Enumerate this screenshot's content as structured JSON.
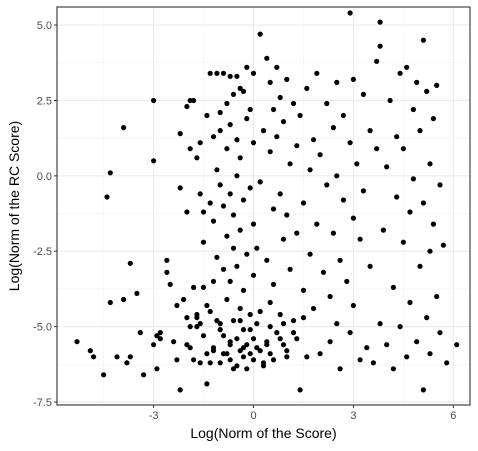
{
  "chart_data": {
    "type": "scatter",
    "xlabel": "Log(Norm of the Score)",
    "ylabel": "Log(Norm of the RC Score)",
    "xlim": [
      -5.9,
      6.5
    ],
    "ylim": [
      -7.6,
      5.6
    ],
    "x_ticks": [
      -3,
      0,
      3,
      6
    ],
    "x_tick_labels": [
      "-3",
      "0",
      "3",
      "6"
    ],
    "y_ticks": [
      -7.5,
      -5.0,
      -2.5,
      0.0,
      2.5,
      5.0
    ],
    "y_tick_labels": [
      "-7.5",
      "-5.0",
      "-2.5",
      "0.0",
      "2.5",
      "5.0"
    ],
    "grid": true,
    "theme": "bw",
    "point_color": "#000000",
    "points": [
      [
        -5.3,
        -5.5
      ],
      [
        -4.9,
        -5.8
      ],
      [
        -4.8,
        -6.0
      ],
      [
        -4.5,
        -6.6
      ],
      [
        -4.4,
        -0.7
      ],
      [
        -4.3,
        0.1
      ],
      [
        -4.3,
        -4.2
      ],
      [
        -4.1,
        -6.0
      ],
      [
        -3.9,
        1.6
      ],
      [
        -3.9,
        -4.1
      ],
      [
        -3.8,
        -6.2
      ],
      [
        -3.7,
        -2.9
      ],
      [
        -3.7,
        -6.0
      ],
      [
        -3.5,
        -3.9
      ],
      [
        -3.4,
        -5.2
      ],
      [
        -3.3,
        -6.6
      ],
      [
        -3.0,
        2.5
      ],
      [
        -3.0,
        0.5
      ],
      [
        -3.0,
        -5.6
      ],
      [
        -2.9,
        -5.3
      ],
      [
        -2.9,
        -6.4
      ],
      [
        -2.8,
        -5.2
      ],
      [
        -2.8,
        -5.4
      ],
      [
        -2.6,
        -2.8
      ],
      [
        -2.6,
        -3.2
      ],
      [
        -2.5,
        -3.6
      ],
      [
        -2.4,
        -5.5
      ],
      [
        -2.3,
        -4.3
      ],
      [
        -2.3,
        -6.1
      ],
      [
        -2.2,
        -7.1
      ],
      [
        -2.2,
        1.4
      ],
      [
        -2.2,
        -0.4
      ],
      [
        -2.1,
        -4.1
      ],
      [
        -2.0,
        2.3
      ],
      [
        -2.0,
        -1.2
      ],
      [
        -2.0,
        -4.7
      ],
      [
        -2.0,
        -5.6
      ],
      [
        -1.9,
        2.5
      ],
      [
        -1.9,
        0.9
      ],
      [
        -1.9,
        -5.0
      ],
      [
        -1.9,
        -5.7
      ],
      [
        -1.8,
        2.5
      ],
      [
        -1.8,
        -3.7
      ],
      [
        -1.8,
        -6.1
      ],
      [
        -1.7,
        0.6
      ],
      [
        -1.7,
        -4.7
      ],
      [
        -1.7,
        -5.0
      ],
      [
        -1.6,
        1.1
      ],
      [
        -1.6,
        -0.6
      ],
      [
        -1.6,
        -4.9
      ],
      [
        -1.6,
        -6.2
      ],
      [
        -1.5,
        -1.2
      ],
      [
        -1.5,
        -2.2
      ],
      [
        -1.5,
        -3.7
      ],
      [
        -1.4,
        2.0
      ],
      [
        -1.4,
        -4.3
      ],
      [
        -1.4,
        -5.9
      ],
      [
        -1.4,
        -6.9
      ],
      [
        -1.3,
        3.4
      ],
      [
        -1.3,
        -0.9
      ],
      [
        -1.3,
        -4.5
      ],
      [
        -1.3,
        -6.2
      ],
      [
        -1.2,
        1.3
      ],
      [
        -1.2,
        -1.5
      ],
      [
        -1.2,
        -3.5
      ],
      [
        -1.2,
        -5.7
      ],
      [
        -1.1,
        3.4
      ],
      [
        -1.1,
        0.2
      ],
      [
        -1.1,
        -2.7
      ],
      [
        -1.1,
        -4.8
      ],
      [
        -1.0,
        2.1
      ],
      [
        -1.0,
        1.5
      ],
      [
        -1.0,
        -0.3
      ],
      [
        -1.0,
        -5.1
      ],
      [
        -1.0,
        -6.2
      ],
      [
        -0.9,
        3.4
      ],
      [
        -0.9,
        -1.0
      ],
      [
        -0.9,
        -3.1
      ],
      [
        -0.9,
        -5.3
      ],
      [
        -0.8,
        2.4
      ],
      [
        -0.8,
        0.9
      ],
      [
        -0.8,
        -2.0
      ],
      [
        -0.8,
        -4.1
      ],
      [
        -0.8,
        -5.9
      ],
      [
        -0.7,
        3.3
      ],
      [
        -0.7,
        1.7
      ],
      [
        -0.7,
        -0.6
      ],
      [
        -0.7,
        -3.5
      ],
      [
        -0.7,
        -5.6
      ],
      [
        -0.7,
        -6.1
      ],
      [
        -0.6,
        2.7
      ],
      [
        -0.6,
        -1.3
      ],
      [
        -0.6,
        -2.4
      ],
      [
        -0.6,
        -4.8
      ],
      [
        -0.6,
        -6.4
      ],
      [
        -0.5,
        3.3
      ],
      [
        -0.5,
        1.2
      ],
      [
        -0.5,
        0.0
      ],
      [
        -0.5,
        -3.0
      ],
      [
        -0.5,
        -5.4
      ],
      [
        -0.4,
        2.9
      ],
      [
        -0.4,
        0.6
      ],
      [
        -0.4,
        -1.8
      ],
      [
        -0.4,
        -4.4
      ],
      [
        -0.4,
        -5.8
      ],
      [
        -0.3,
        2.8
      ],
      [
        -0.3,
        -0.8
      ],
      [
        -0.3,
        -3.8
      ],
      [
        -0.3,
        -5.1
      ],
      [
        -0.3,
        -6.0
      ],
      [
        -0.2,
        3.6
      ],
      [
        -0.2,
        1.9
      ],
      [
        -0.2,
        -2.6
      ],
      [
        -0.2,
        -5.6
      ],
      [
        -0.1,
        2.2
      ],
      [
        -0.1,
        -0.4
      ],
      [
        -0.1,
        -4.6
      ],
      [
        -0.1,
        -5.9
      ],
      [
        0.0,
        3.4
      ],
      [
        0.0,
        1.1
      ],
      [
        0.0,
        -1.6
      ],
      [
        0.0,
        -3.3
      ],
      [
        0.0,
        -5.4
      ],
      [
        0.0,
        -6.1
      ],
      [
        0.1,
        -2.4
      ],
      [
        0.1,
        -4.9
      ],
      [
        0.1,
        -5.7
      ],
      [
        0.2,
        4.7
      ],
      [
        0.2,
        -0.2
      ],
      [
        0.2,
        -5.8
      ],
      [
        0.3,
        1.5
      ],
      [
        0.3,
        -6.3
      ],
      [
        0.4,
        3.9
      ],
      [
        0.4,
        -2.8
      ],
      [
        0.4,
        -5.5
      ],
      [
        0.5,
        3.1
      ],
      [
        0.5,
        0.8
      ],
      [
        0.5,
        -4.2
      ],
      [
        0.5,
        -5.9
      ],
      [
        0.6,
        2.2
      ],
      [
        0.6,
        -1.1
      ],
      [
        0.6,
        -3.6
      ],
      [
        0.7,
        3.6
      ],
      [
        0.7,
        1.3
      ],
      [
        0.7,
        -5.2
      ],
      [
        0.8,
        2.6
      ],
      [
        0.8,
        -0.6
      ],
      [
        0.8,
        -4.6
      ],
      [
        0.9,
        1.8
      ],
      [
        0.9,
        -2.1
      ],
      [
        0.9,
        -5.6
      ],
      [
        1.0,
        3.2
      ],
      [
        1.0,
        -1.3
      ],
      [
        1.0,
        -6.0
      ],
      [
        1.1,
        0.4
      ],
      [
        1.1,
        -3.1
      ],
      [
        1.2,
        2.4
      ],
      [
        1.2,
        -4.8
      ],
      [
        1.3,
        1.0
      ],
      [
        1.3,
        -1.9
      ],
      [
        1.3,
        -5.4
      ],
      [
        1.4,
        -7.1
      ],
      [
        1.4,
        2.0
      ],
      [
        1.5,
        -0.9
      ],
      [
        1.5,
        -3.8
      ],
      [
        1.6,
        2.9
      ],
      [
        1.6,
        -6.0
      ],
      [
        1.7,
        0.2
      ],
      [
        1.7,
        -2.6
      ],
      [
        1.8,
        1.2
      ],
      [
        1.8,
        -4.4
      ],
      [
        1.9,
        3.4
      ],
      [
        1.9,
        -1.6
      ],
      [
        2.0,
        -5.9
      ],
      [
        2.0,
        0.7
      ],
      [
        2.1,
        -3.2
      ],
      [
        2.2,
        2.4
      ],
      [
        2.2,
        -0.3
      ],
      [
        2.3,
        -4.0
      ],
      [
        2.3,
        -5.5
      ],
      [
        2.4,
        1.6
      ],
      [
        2.4,
        -1.9
      ],
      [
        2.5,
        3.1
      ],
      [
        2.5,
        0.0
      ],
      [
        2.5,
        -4.9
      ],
      [
        2.6,
        -2.8
      ],
      [
        2.6,
        -6.4
      ],
      [
        2.7,
        2.0
      ],
      [
        2.7,
        -0.8
      ],
      [
        2.8,
        -3.5
      ],
      [
        2.9,
        5.4
      ],
      [
        2.9,
        1.1
      ],
      [
        2.9,
        -5.2
      ],
      [
        3.0,
        -1.4
      ],
      [
        3.0,
        3.2
      ],
      [
        3.0,
        -4.3
      ],
      [
        3.1,
        0.4
      ],
      [
        3.2,
        -2.1
      ],
      [
        3.2,
        -6.1
      ],
      [
        3.3,
        2.7
      ],
      [
        3.3,
        -0.5
      ],
      [
        3.4,
        -5.7
      ],
      [
        3.5,
        1.5
      ],
      [
        3.5,
        -3.0
      ],
      [
        3.6,
        -6.2
      ],
      [
        3.7,
        3.8
      ],
      [
        3.7,
        0.9
      ],
      [
        3.8,
        5.1
      ],
      [
        3.8,
        4.3
      ],
      [
        3.8,
        -4.9
      ],
      [
        3.9,
        -1.8
      ],
      [
        4.0,
        -5.6
      ],
      [
        4.0,
        0.3
      ],
      [
        4.1,
        2.5
      ],
      [
        4.2,
        -3.7
      ],
      [
        4.2,
        -6.4
      ],
      [
        4.3,
        1.3
      ],
      [
        4.3,
        -0.7
      ],
      [
        4.4,
        3.4
      ],
      [
        4.4,
        -5.0
      ],
      [
        4.5,
        -2.2
      ],
      [
        4.5,
        0.9
      ],
      [
        4.6,
        3.6
      ],
      [
        4.6,
        -6.0
      ],
      [
        4.7,
        -1.2
      ],
      [
        4.7,
        -4.2
      ],
      [
        4.8,
        2.2
      ],
      [
        4.8,
        -0.1
      ],
      [
        4.9,
        3.1
      ],
      [
        4.9,
        -5.5
      ],
      [
        5.0,
        1.5
      ],
      [
        5.0,
        -3.0
      ],
      [
        5.1,
        -7.1
      ],
      [
        5.1,
        4.5
      ],
      [
        5.1,
        -0.9
      ],
      [
        5.2,
        2.8
      ],
      [
        5.2,
        -4.7
      ],
      [
        5.3,
        0.4
      ],
      [
        5.3,
        -2.5
      ],
      [
        5.3,
        -5.9
      ],
      [
        5.4,
        1.9
      ],
      [
        5.4,
        -1.6
      ],
      [
        5.5,
        3.0
      ],
      [
        5.5,
        -4.0
      ],
      [
        5.6,
        -0.3
      ],
      [
        5.6,
        -5.2
      ],
      [
        5.7,
        -2.3
      ],
      [
        6.1,
        -5.6
      ],
      [
        5.8,
        -6.2
      ],
      [
        -0.2,
        -6.4
      ],
      [
        0.3,
        -6.2
      ],
      [
        -0.5,
        -6.3
      ],
      [
        0.6,
        -6.1
      ],
      [
        -0.9,
        -5.9
      ],
      [
        1.0,
        -5.8
      ],
      [
        -1.2,
        -5.8
      ],
      [
        -0.3,
        -5.7
      ],
      [
        0.4,
        -5.6
      ],
      [
        -0.7,
        -5.5
      ],
      [
        0.8,
        -5.4
      ],
      [
        -1.5,
        -5.3
      ],
      [
        1.2,
        -5.2
      ],
      [
        -0.1,
        -5.1
      ],
      [
        0.5,
        -5.0
      ],
      [
        -1.0,
        -4.9
      ],
      [
        0.9,
        -4.9
      ],
      [
        -0.4,
        -4.8
      ],
      [
        1.5,
        -4.7
      ],
      [
        -1.7,
        -4.6
      ],
      [
        0.2,
        -4.5
      ]
    ]
  }
}
